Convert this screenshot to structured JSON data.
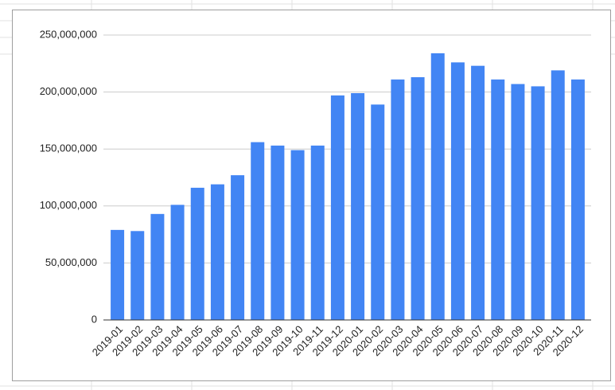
{
  "chart_data": {
    "type": "bar",
    "categories": [
      "2019-01",
      "2019-02",
      "2019-03",
      "2019-04",
      "2019-05",
      "2019-06",
      "2019-07",
      "2019-08",
      "2019-09",
      "2019-10",
      "2019-11",
      "2019-12",
      "2020-01",
      "2020-02",
      "2020-03",
      "2020-04",
      "2020-05",
      "2020-06",
      "2020-07",
      "2020-08",
      "2020-09",
      "2020-10",
      "2020-11",
      "2020-12"
    ],
    "values": [
      79000000,
      78000000,
      93000000,
      101000000,
      116000000,
      119000000,
      127000000,
      156000000,
      153000000,
      149000000,
      153000000,
      197000000,
      199000000,
      189000000,
      211000000,
      213000000,
      234000000,
      226000000,
      223000000,
      211000000,
      207000000,
      205000000,
      219000000,
      211000000
    ],
    "color": "#4285f4",
    "ylim": [
      0,
      250000000
    ],
    "yticks": [
      0,
      {
        "value": 50000000,
        "label": "50,000,000"
      },
      {
        "value": 100000000,
        "label": "100,000,000"
      },
      {
        "value": 150000000,
        "label": "150,000,000"
      },
      {
        "value": 200000000,
        "label": "200,000,000"
      },
      {
        "value": 250000000,
        "label": "250,000,000"
      }
    ],
    "grid": true
  }
}
